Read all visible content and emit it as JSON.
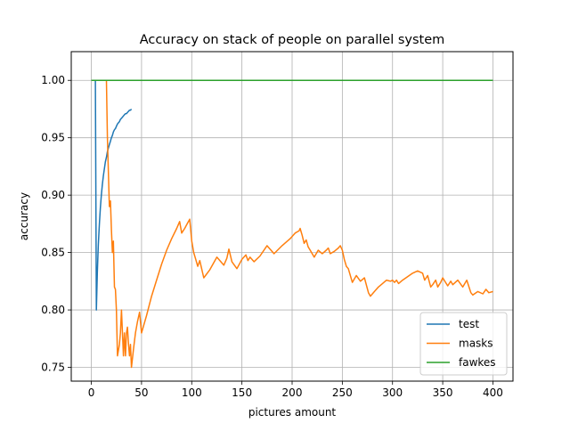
{
  "chart_data": {
    "type": "line",
    "title": "Accuracy on stack of people on parallel system",
    "xlabel": "pictures amount",
    "ylabel": "accuracy",
    "xlim": [
      -20,
      420
    ],
    "ylim": [
      0.738,
      1.025
    ],
    "xticks": [
      0,
      50,
      100,
      150,
      200,
      250,
      300,
      350,
      400
    ],
    "xtick_labels": [
      "0",
      "50",
      "100",
      "150",
      "200",
      "250",
      "300",
      "350",
      "400"
    ],
    "yticks": [
      0.75,
      0.8,
      0.85,
      0.9,
      0.95,
      1.0
    ],
    "ytick_labels": [
      "0.75",
      "0.80",
      "0.85",
      "0.90",
      "0.95",
      "1.00"
    ],
    "grid": true,
    "legend_position": "lower-right",
    "series": [
      {
        "name": "test",
        "color": "#1f77b4",
        "x": [
          1,
          2,
          3,
          4,
          5,
          6,
          7,
          8,
          9,
          10,
          11,
          12,
          13,
          14,
          15,
          16,
          17,
          18,
          19,
          20,
          21,
          22,
          23,
          24,
          25,
          26,
          27,
          28,
          29,
          30,
          31,
          32,
          33,
          34,
          35,
          36,
          37,
          38,
          39,
          40
        ],
        "y": [
          1.0,
          1.0,
          1.0,
          1.0,
          0.8,
          0.833,
          0.857,
          0.875,
          0.889,
          0.9,
          0.909,
          0.917,
          0.923,
          0.929,
          0.933,
          0.938,
          0.941,
          0.944,
          0.947,
          0.95,
          0.952,
          0.955,
          0.957,
          0.958,
          0.96,
          0.962,
          0.963,
          0.964,
          0.966,
          0.967,
          0.968,
          0.969,
          0.97,
          0.971,
          0.971,
          0.972,
          0.973,
          0.974,
          0.974,
          0.975
        ]
      },
      {
        "name": "masks",
        "color": "#ff7f0e",
        "x": [
          0,
          15,
          16,
          17,
          18,
          19,
          20,
          21,
          22,
          23,
          24,
          25,
          26,
          27,
          28,
          29,
          30,
          31,
          32,
          33,
          34,
          35,
          36,
          37,
          38,
          39,
          40,
          42,
          44,
          46,
          48,
          50,
          55,
          60,
          65,
          70,
          75,
          80,
          85,
          88,
          90,
          93,
          96,
          98,
          100,
          102,
          104,
          106,
          108,
          112,
          118,
          125,
          132,
          135,
          137,
          140,
          145,
          150,
          154,
          156,
          158,
          162,
          168,
          175,
          182,
          190,
          198,
          203,
          207,
          208,
          210,
          212,
          214,
          216,
          218,
          222,
          226,
          230,
          234,
          236,
          238,
          242,
          246,
          248,
          250,
          252,
          254,
          256,
          260,
          264,
          268,
          272,
          276,
          278,
          282,
          286,
          290,
          294,
          298,
          300,
          302,
          304,
          306,
          310,
          315,
          320,
          325,
          330,
          332,
          335,
          338,
          340,
          343,
          345,
          348,
          350,
          355,
          358,
          360,
          365,
          370,
          374,
          378,
          380,
          385,
          390,
          393,
          396,
          400
        ],
        "y": [
          1.0,
          1.0,
          0.95,
          0.92,
          0.89,
          0.895,
          0.87,
          0.85,
          0.86,
          0.82,
          0.818,
          0.8,
          0.76,
          0.765,
          0.77,
          0.78,
          0.8,
          0.78,
          0.76,
          0.78,
          0.76,
          0.78,
          0.785,
          0.77,
          0.76,
          0.77,
          0.75,
          0.766,
          0.78,
          0.79,
          0.798,
          0.78,
          0.795,
          0.812,
          0.826,
          0.84,
          0.852,
          0.862,
          0.871,
          0.877,
          0.867,
          0.871,
          0.876,
          0.879,
          0.86,
          0.85,
          0.844,
          0.838,
          0.843,
          0.828,
          0.835,
          0.846,
          0.839,
          0.845,
          0.853,
          0.842,
          0.836,
          0.844,
          0.848,
          0.843,
          0.846,
          0.842,
          0.847,
          0.856,
          0.849,
          0.856,
          0.862,
          0.867,
          0.869,
          0.871,
          0.865,
          0.858,
          0.861,
          0.855,
          0.852,
          0.846,
          0.852,
          0.849,
          0.852,
          0.854,
          0.849,
          0.851,
          0.854,
          0.856,
          0.852,
          0.844,
          0.838,
          0.836,
          0.824,
          0.83,
          0.825,
          0.828,
          0.815,
          0.812,
          0.816,
          0.82,
          0.823,
          0.826,
          0.825,
          0.826,
          0.824,
          0.826,
          0.823,
          0.826,
          0.829,
          0.832,
          0.834,
          0.832,
          0.826,
          0.83,
          0.82,
          0.822,
          0.826,
          0.82,
          0.824,
          0.828,
          0.821,
          0.825,
          0.822,
          0.826,
          0.82,
          0.826,
          0.815,
          0.813,
          0.816,
          0.814,
          0.818,
          0.815,
          0.816
        ]
      },
      {
        "name": "fawkes",
        "color": "#2ca02c",
        "x": [
          0,
          400
        ],
        "y": [
          1.0,
          1.0
        ]
      }
    ]
  }
}
